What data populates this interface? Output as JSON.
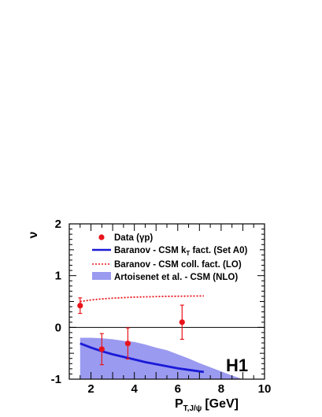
{
  "chart_data": {
    "type": "line",
    "title": "",
    "xlabel": {
      "main": "P",
      "sub": "T,J/ψ",
      "unit": "[GeV]"
    },
    "ylabel": "ν",
    "xlim": [
      1,
      10
    ],
    "ylim": [
      -1,
      2
    ],
    "xticks": [
      2,
      4,
      6,
      8,
      10
    ],
    "yticks": [
      -1,
      0,
      1,
      2
    ],
    "zero_line": true,
    "legend_position": "top-left",
    "logo": "H1",
    "series": [
      {
        "name": "Data (γp)",
        "kind": "points",
        "color": "#e8141b",
        "x": [
          1.5,
          2.5,
          3.7,
          6.2
        ],
        "y": [
          0.42,
          -0.42,
          -0.31,
          0.1
        ],
        "yerr_low": [
          0.15,
          0.3,
          0.3,
          0.33
        ],
        "yerr_high": [
          0.15,
          0.3,
          0.3,
          0.33
        ],
        "xerr": [
          0.1,
          0.1,
          0.1,
          0.1
        ]
      },
      {
        "name": "Baranov - CSM k_T fact. (Set A0)",
        "legend_main": "Baranov - CSM k",
        "legend_sub": "T",
        "legend_rest": " fact. (Set A0)",
        "kind": "line",
        "style": "solid",
        "color": "#1a1ad8",
        "x": [
          1.5,
          2.0,
          2.5,
          3.0,
          3.5,
          4.0,
          4.5,
          5.0,
          5.5,
          6.0,
          6.5,
          7.0,
          7.2
        ],
        "y": [
          -0.31,
          -0.39,
          -0.46,
          -0.52,
          -0.57,
          -0.62,
          -0.67,
          -0.71,
          -0.75,
          -0.79,
          -0.82,
          -0.85,
          -0.86
        ]
      },
      {
        "name": "Baranov - CSM coll. fact. (LO)",
        "kind": "line",
        "style": "dotted",
        "color": "#e8141b",
        "x": [
          1.5,
          2.0,
          2.5,
          3.0,
          3.5,
          4.0,
          4.5,
          5.0,
          5.5,
          6.0,
          6.5,
          7.0,
          7.2
        ],
        "y": [
          0.5,
          0.53,
          0.55,
          0.565,
          0.575,
          0.585,
          0.59,
          0.595,
          0.6,
          0.602,
          0.605,
          0.607,
          0.608
        ]
      },
      {
        "name": "Artoisenet et al. - CSM (NLO)",
        "kind": "band",
        "color": "#9a9af0",
        "x": [
          1.5,
          2.0,
          2.5,
          3.0,
          3.5,
          4.0,
          4.5,
          5.0,
          5.5,
          6.0,
          6.5,
          7.0,
          7.5,
          8.0,
          8.5,
          9.0
        ],
        "y_high": [
          -0.2,
          -0.2,
          -0.21,
          -0.23,
          -0.26,
          -0.28,
          -0.33,
          -0.39,
          -0.44,
          -0.52,
          -0.6,
          -0.69,
          -0.77,
          -0.85,
          -0.93,
          -1.0
        ],
        "y_low": [
          -1,
          -1,
          -1,
          -1,
          -1,
          -1,
          -1,
          -1,
          -1,
          -1,
          -1,
          -1,
          -1,
          -1,
          -1,
          -1
        ]
      }
    ]
  }
}
